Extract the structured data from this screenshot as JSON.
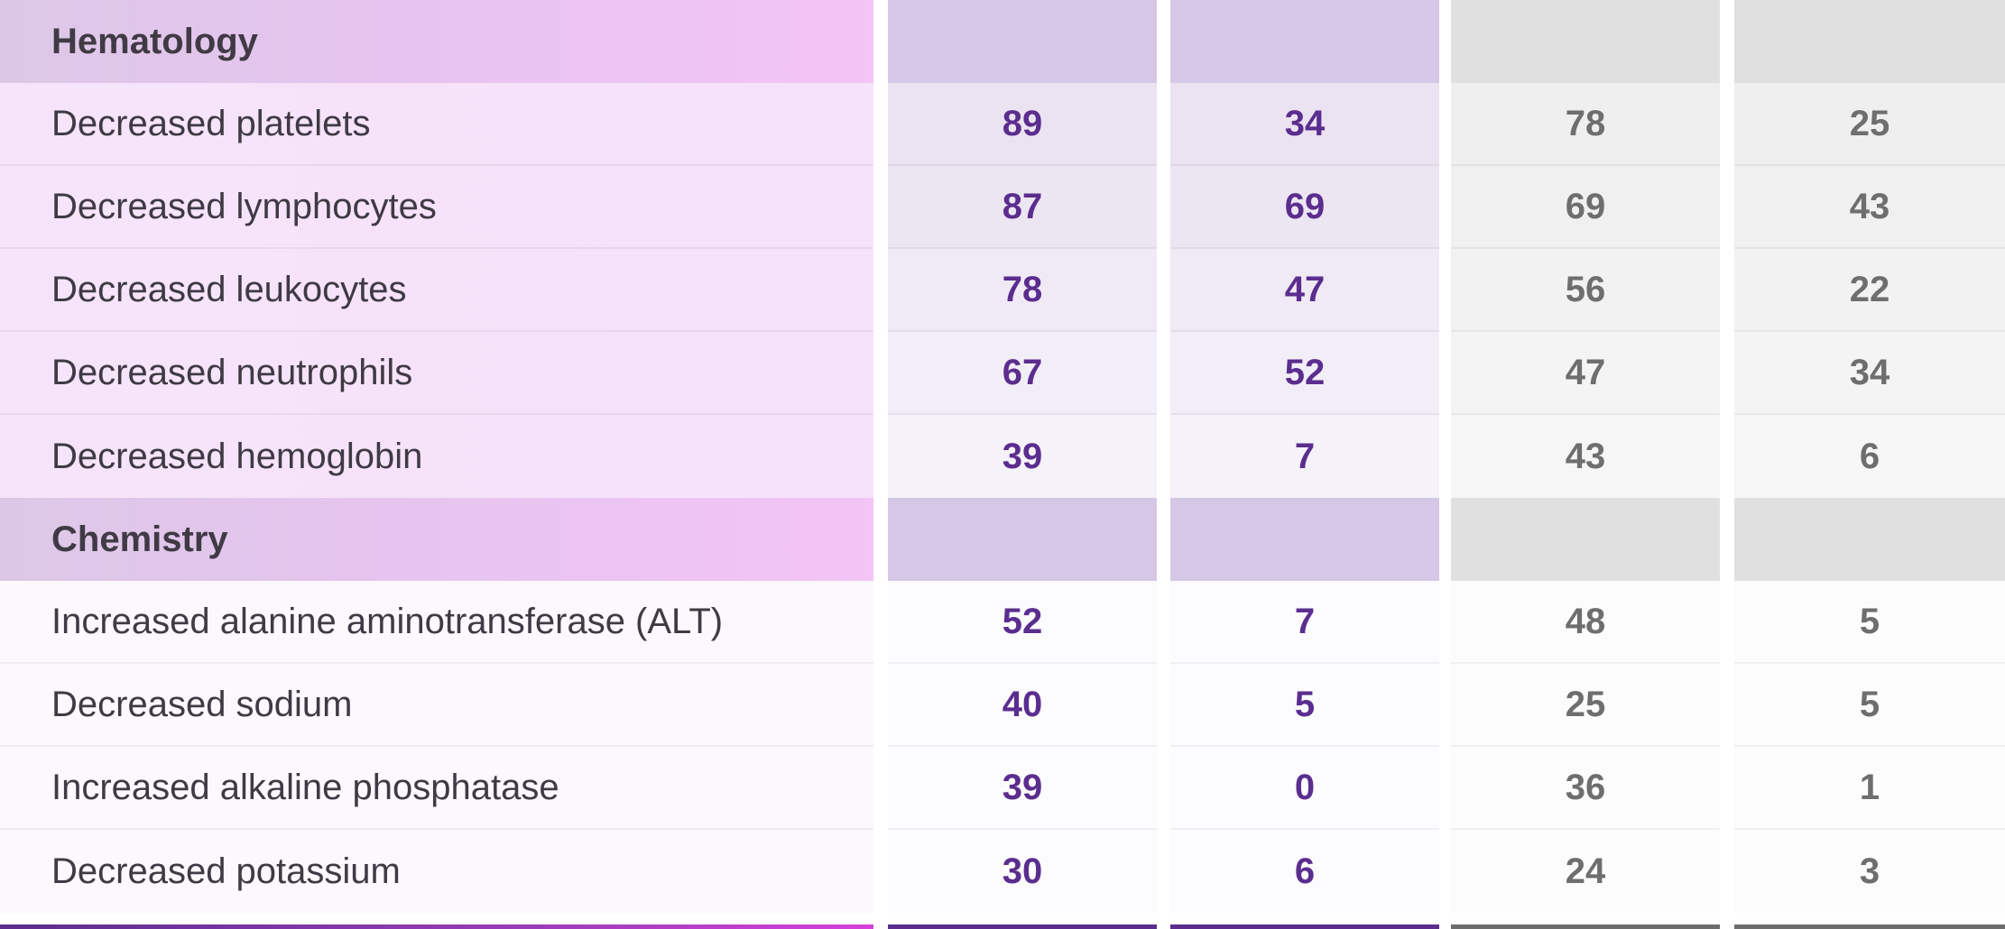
{
  "colors": {
    "accent_purple": "#5b2d8e",
    "gray_text": "#6e6e6e",
    "section_bg_purple": "#d5c7e6",
    "section_bg_gray": "#e0e0e0"
  },
  "table": {
    "sections": [
      {
        "title": "Hematology",
        "rows": [
          {
            "label": "Decreased platelets",
            "values": [
              "89",
              "34",
              "78",
              "25"
            ]
          },
          {
            "label": "Decreased lymphocytes",
            "values": [
              "87",
              "69",
              "69",
              "43"
            ]
          },
          {
            "label": "Decreased leukocytes",
            "values": [
              "78",
              "47",
              "56",
              "22"
            ]
          },
          {
            "label": "Decreased neutrophils",
            "values": [
              "67",
              "52",
              "47",
              "34"
            ]
          },
          {
            "label": "Decreased hemoglobin",
            "values": [
              "39",
              "7",
              "43",
              "6"
            ]
          }
        ]
      },
      {
        "title": "Chemistry",
        "rows": [
          {
            "label": "Increased alanine aminotransferase (ALT)",
            "values": [
              "52",
              "7",
              "48",
              "5"
            ]
          },
          {
            "label": "Decreased sodium",
            "values": [
              "40",
              "5",
              "25",
              "5"
            ]
          },
          {
            "label": "Increased alkaline phosphatase",
            "values": [
              "39",
              "0",
              "36",
              "1"
            ]
          },
          {
            "label": "Decreased potassium",
            "values": [
              "30",
              "6",
              "24",
              "3"
            ]
          }
        ]
      }
    ]
  }
}
